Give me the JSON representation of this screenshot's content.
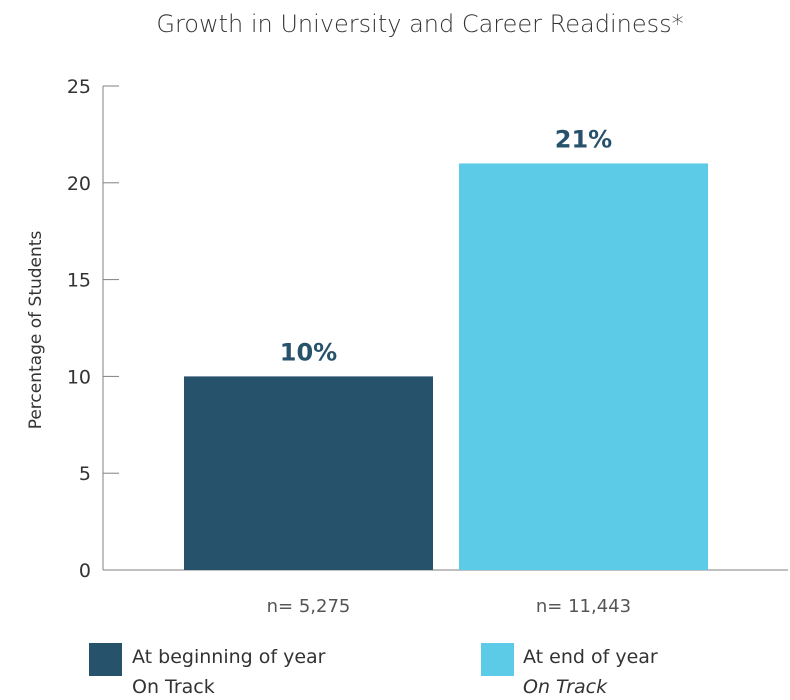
{
  "chart_data": {
    "type": "bar",
    "title": "Growth in University and Career Readiness*",
    "ylabel": "Percentage of Students",
    "xlabel": "",
    "ylim": [
      0,
      25
    ],
    "yticks": [
      0,
      5,
      10,
      15,
      20,
      25
    ],
    "bars": [
      {
        "value": 10,
        "data_label": "10%",
        "n_label": "n= 5,275",
        "color": "#27526b",
        "label_color": "#27526b",
        "legend_line1": "At beginning of year",
        "legend_line2": "On Track",
        "legend_line2_italic": false
      },
      {
        "value": 21,
        "data_label": "21%",
        "n_label": "n= 11,443",
        "color": "#5bcbe8",
        "label_color": "#27526b",
        "legend_line1": "At end of year",
        "legend_line2": "On Track",
        "legend_line2_italic": true
      }
    ],
    "grid": false,
    "legend_position": "bottom"
  }
}
